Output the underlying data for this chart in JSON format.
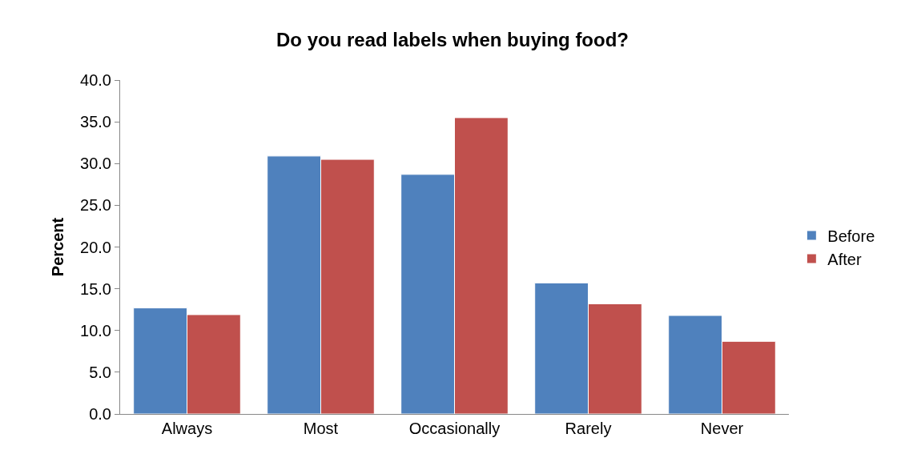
{
  "chart_data": {
    "type": "bar",
    "title": "Do you read labels when buying food?",
    "ylabel": "Percent",
    "categories": [
      "Always",
      "Most",
      "Occasionally",
      "Rarely",
      "Never"
    ],
    "series": [
      {
        "name": "Before",
        "color": "#4f81bd",
        "values": [
          12.7,
          30.9,
          28.7,
          15.7,
          11.8
        ]
      },
      {
        "name": "After",
        "color": "#c0504d",
        "values": [
          11.9,
          30.5,
          35.5,
          13.2,
          8.7
        ]
      }
    ],
    "ylim": [
      0,
      40
    ],
    "yticks": [
      {
        "value": 0,
        "label": "0.0"
      },
      {
        "value": 5,
        "label": "5.0"
      },
      {
        "value": 10,
        "label": "10.0"
      },
      {
        "value": 15,
        "label": "15.0"
      },
      {
        "value": 20,
        "label": "20.0"
      },
      {
        "value": 25,
        "label": "25.0"
      },
      {
        "value": 30,
        "label": "30.0"
      },
      {
        "value": 35,
        "label": "35.0"
      },
      {
        "value": 40,
        "label": "40.0"
      }
    ],
    "legend": "right"
  }
}
